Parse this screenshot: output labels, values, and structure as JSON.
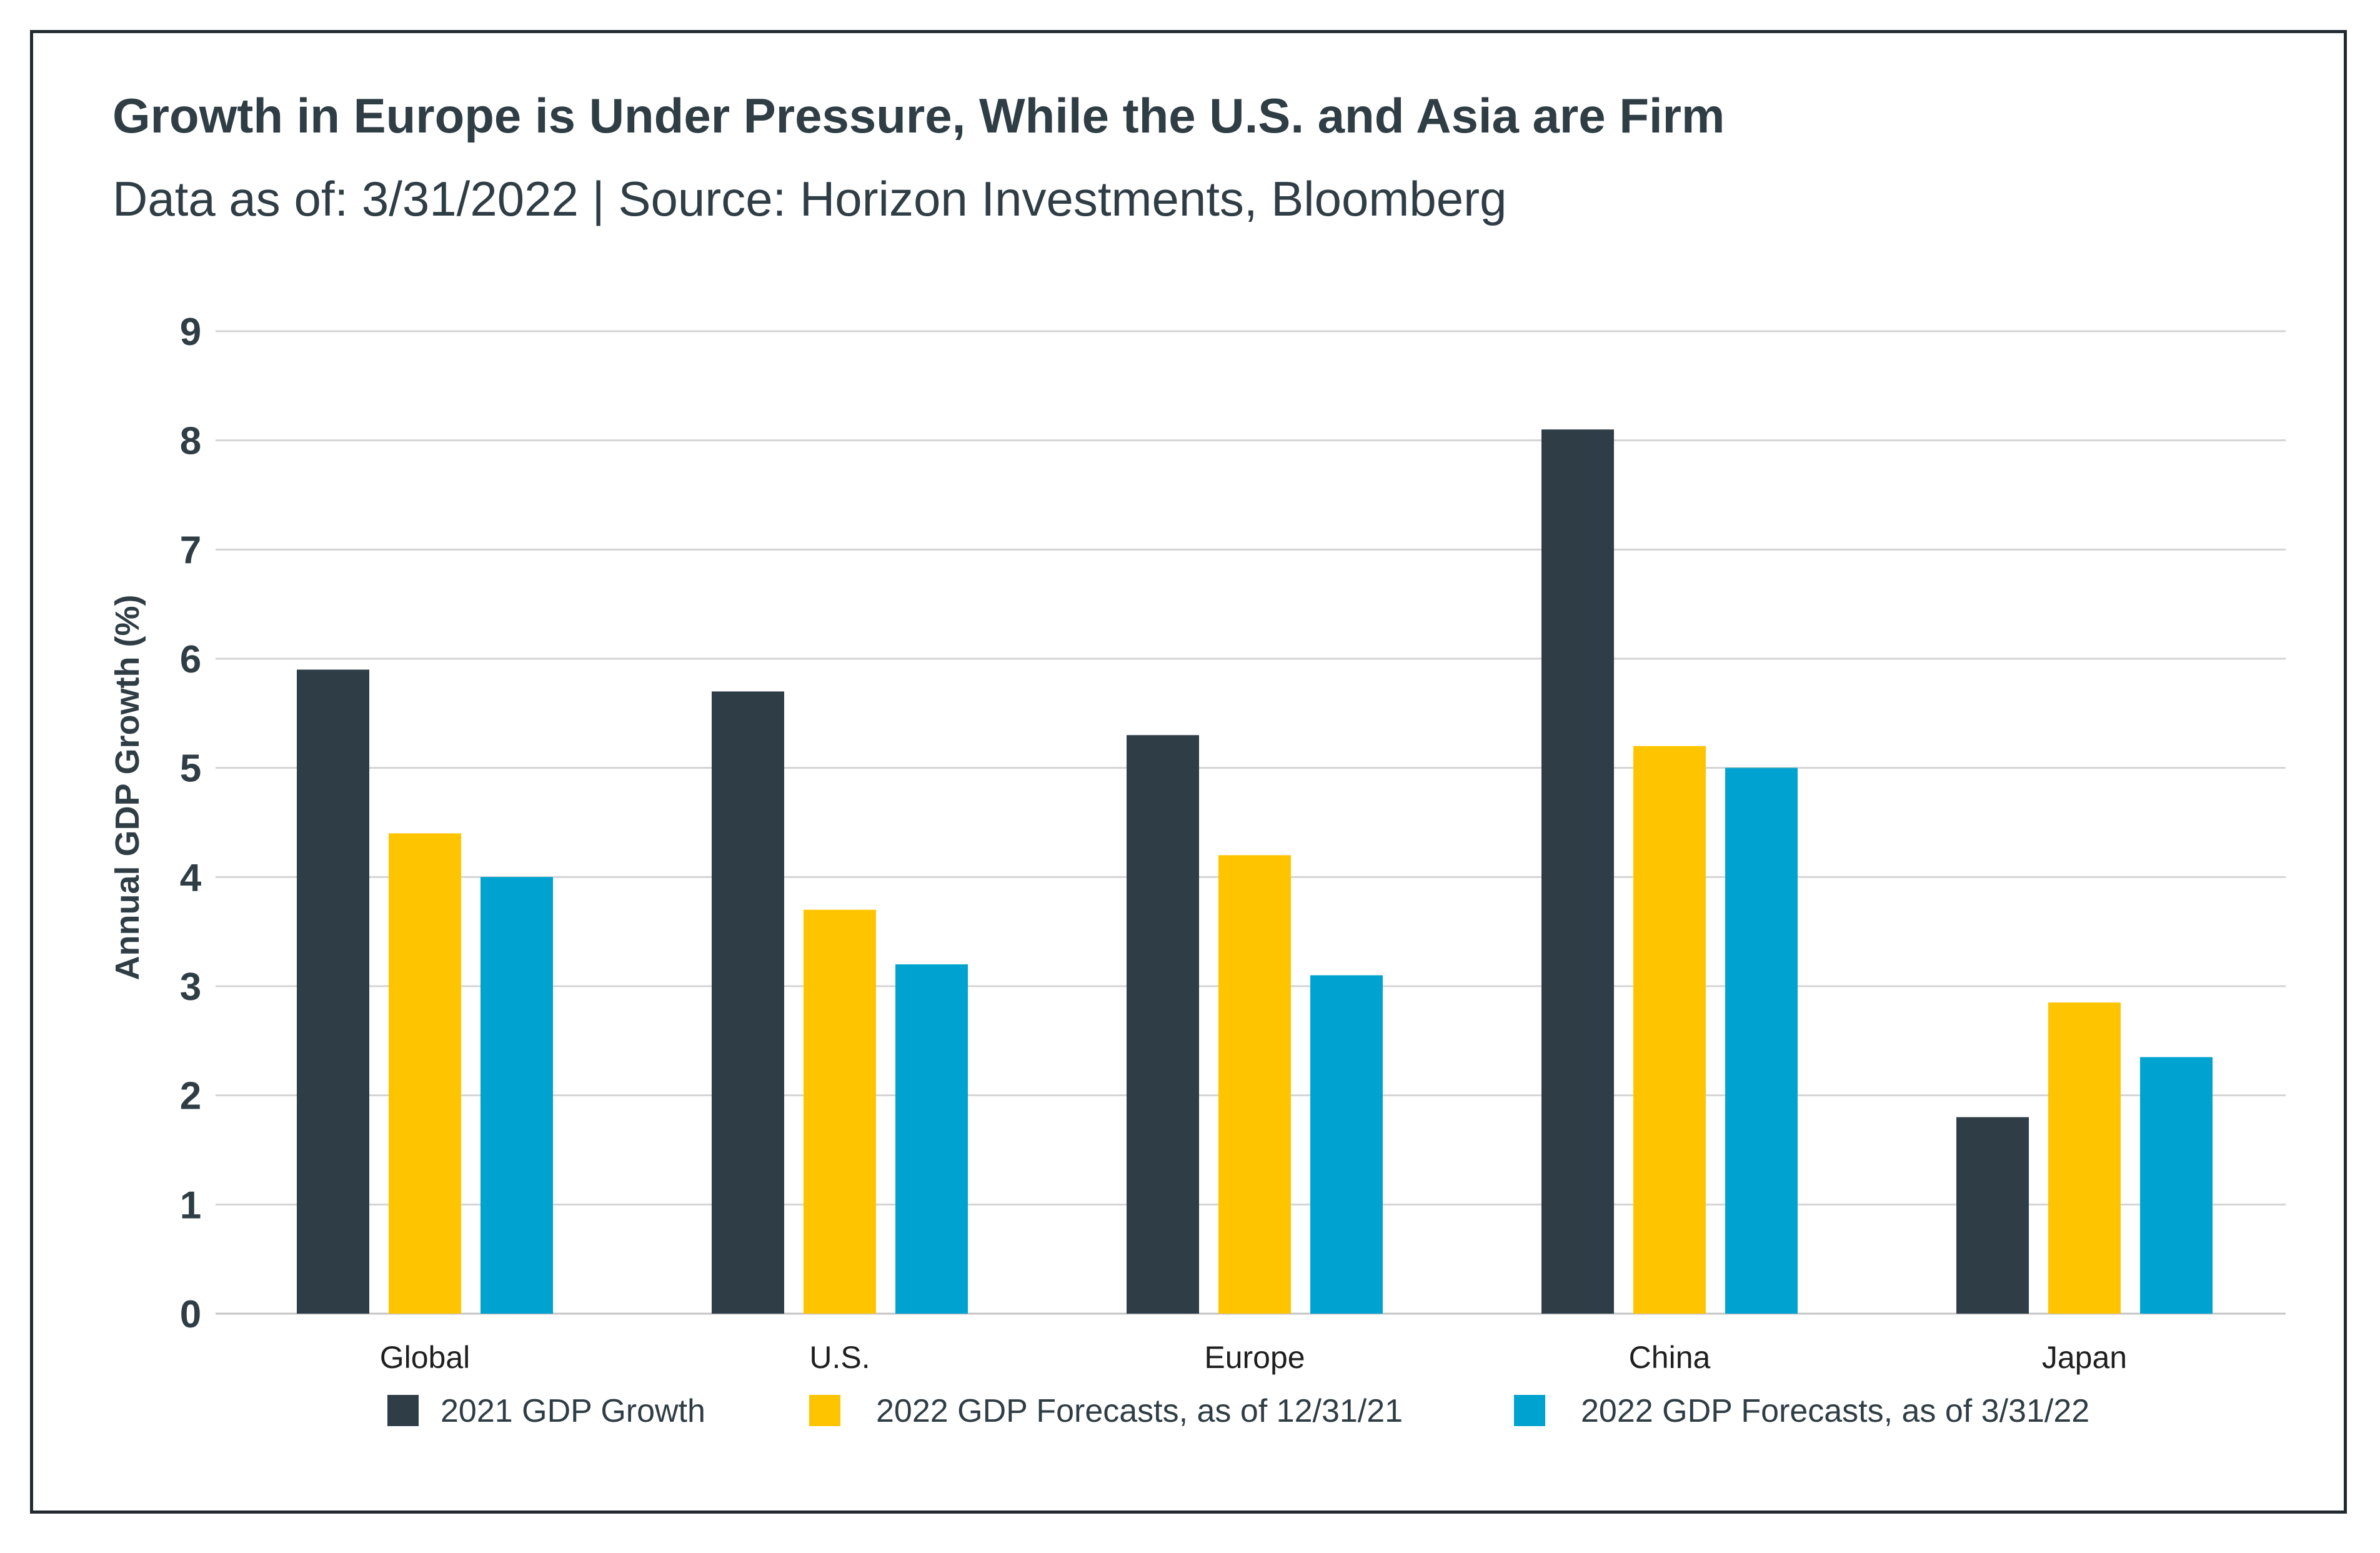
{
  "chart_data": {
    "type": "bar",
    "title": "Growth in Europe is Under Pressure, While the U.S. and Asia are Firm",
    "subtitle": "Data as of: 3/31/2022 | Source: Horizon Investments, Bloomberg",
    "ylabel": "Annual GDP Growth (%)",
    "xlabel": "",
    "ylim": [
      0,
      9
    ],
    "yticks": [
      "0",
      "1",
      "2",
      "3",
      "4",
      "5",
      "6",
      "7",
      "8",
      "9"
    ],
    "grid": true,
    "legend_position": "bottom",
    "categories": [
      "Global",
      "U.S.",
      "Europe",
      "China",
      "Japan"
    ],
    "series": [
      {
        "name": "2021 GDP Growth",
        "color": "#2f3d46",
        "values": [
          5.9,
          5.7,
          5.3,
          8.1,
          1.8
        ]
      },
      {
        "name": "2022 GDP Forecasts, as of 12/31/21",
        "color": "#ffc400",
        "values": [
          4.4,
          3.7,
          4.2,
          5.2,
          2.85
        ]
      },
      {
        "name": "2022 GDP Forecasts, as of 3/31/22",
        "color": "#00a3cf",
        "values": [
          4.0,
          3.2,
          3.1,
          5.0,
          2.35
        ]
      }
    ]
  }
}
